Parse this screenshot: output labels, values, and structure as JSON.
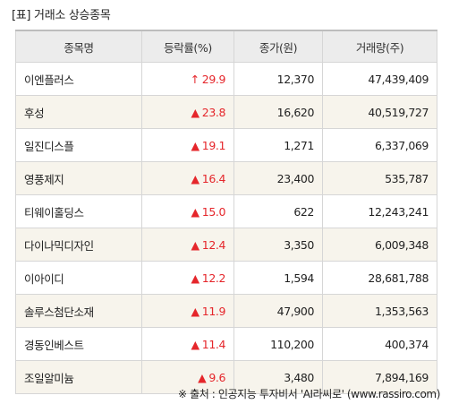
{
  "title": "[표] 거래소 상승종목",
  "columns": [
    "종목명",
    "등락률(%)",
    "종가(원)",
    "거래량(주)"
  ],
  "rows": [
    {
      "name": "이엔플러스",
      "arrow": "↑",
      "rate": "29.9",
      "close": "12,370",
      "volume": "47,439,409"
    },
    {
      "name": "후성",
      "arrow": "▲",
      "rate": "23.8",
      "close": "16,620",
      "volume": "40,519,727"
    },
    {
      "name": "일진디스플",
      "arrow": "▲",
      "rate": "19.1",
      "close": "1,271",
      "volume": "6,337,069"
    },
    {
      "name": "영풍제지",
      "arrow": "▲",
      "rate": "16.4",
      "close": "23,400",
      "volume": "535,787"
    },
    {
      "name": "티웨이홀딩스",
      "arrow": "▲",
      "rate": "15.0",
      "close": "622",
      "volume": "12,243,241"
    },
    {
      "name": "다이나믹디자인",
      "arrow": "▲",
      "rate": "12.4",
      "close": "3,350",
      "volume": "6,009,348"
    },
    {
      "name": "이아이디",
      "arrow": "▲",
      "rate": "12.2",
      "close": "1,594",
      "volume": "28,681,788"
    },
    {
      "name": "솔루스첨단소재",
      "arrow": "▲",
      "rate": "11.9",
      "close": "47,900",
      "volume": "1,353,563"
    },
    {
      "name": "경동인베스트",
      "arrow": "▲",
      "rate": "11.4",
      "close": "110,200",
      "volume": "400,374"
    },
    {
      "name": "조일알미늄",
      "arrow": "▲",
      "rate": "9.6",
      "close": "3,480",
      "volume": "7,894,169"
    }
  ],
  "footer": "※ 출처 : 인공지능 투자비서 'AI라씨로' (www.rassiro.com)",
  "colors": {
    "up": "#e5262b",
    "header_bg": "#ececec",
    "stripe_bg": "#f7f4ec",
    "border": "#d6d6d6"
  }
}
